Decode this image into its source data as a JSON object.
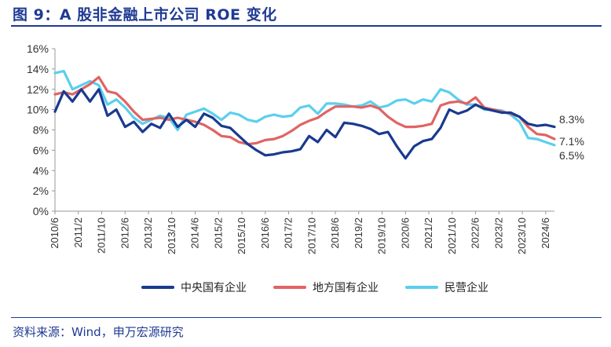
{
  "page": {
    "title": "图 9：A 股非金融上市公司 ROE 变化",
    "source": "资料来源：Wind，申万宏源研究"
  },
  "chart_data": {
    "type": "line",
    "title": "",
    "xlabel": "",
    "ylabel": "",
    "ylim": [
      0,
      16
    ],
    "yticks": [
      "0%",
      "2%",
      "4%",
      "6%",
      "8%",
      "10%",
      "12%",
      "14%",
      "16%"
    ],
    "x_tick_labels": [
      "2010/6",
      "2011/2",
      "2011/10",
      "2012/6",
      "2013/2",
      "2013/10",
      "2014/6",
      "2015/2",
      "2015/10",
      "2016/6",
      "2017/2",
      "2017/10",
      "2018/6",
      "2019/2",
      "2019/10",
      "2020/6",
      "2021/2",
      "2021/10",
      "2022/6",
      "2023/2",
      "2023/10",
      "2024/6"
    ],
    "x_start": "2010/6",
    "x_end": "2024/9",
    "grid": false,
    "legend_position": "bottom",
    "series": [
      {
        "name": "中央国有企业",
        "color": "#1a3a8f",
        "end_label": "8.3%",
        "points": [
          [
            "2010/6",
            9.8
          ],
          [
            "2010/9",
            11.8
          ],
          [
            "2010/12",
            10.8
          ],
          [
            "2011/3",
            12.0
          ],
          [
            "2011/6",
            10.8
          ],
          [
            "2011/9",
            12.0
          ],
          [
            "2011/12",
            9.4
          ],
          [
            "2012/3",
            10.0
          ],
          [
            "2012/6",
            8.3
          ],
          [
            "2012/9",
            8.8
          ],
          [
            "2012/12",
            7.8
          ],
          [
            "2013/3",
            8.6
          ],
          [
            "2013/6",
            8.2
          ],
          [
            "2013/9",
            9.6
          ],
          [
            "2013/12",
            8.3
          ],
          [
            "2014/3",
            9.0
          ],
          [
            "2014/6",
            8.3
          ],
          [
            "2014/9",
            9.6
          ],
          [
            "2014/12",
            9.2
          ],
          [
            "2015/3",
            8.4
          ],
          [
            "2015/6",
            8.2
          ],
          [
            "2015/9",
            7.4
          ],
          [
            "2015/12",
            6.6
          ],
          [
            "2016/3",
            6.0
          ],
          [
            "2016/6",
            5.5
          ],
          [
            "2016/9",
            5.6
          ],
          [
            "2016/12",
            5.8
          ],
          [
            "2017/3",
            5.9
          ],
          [
            "2017/6",
            6.1
          ],
          [
            "2017/9",
            7.4
          ],
          [
            "2017/12",
            6.8
          ],
          [
            "2018/3",
            8.0
          ],
          [
            "2018/6",
            7.3
          ],
          [
            "2018/9",
            8.7
          ],
          [
            "2018/12",
            8.6
          ],
          [
            "2019/3",
            8.4
          ],
          [
            "2019/6",
            8.1
          ],
          [
            "2019/9",
            7.6
          ],
          [
            "2019/12",
            7.8
          ],
          [
            "2020/3",
            6.4
          ],
          [
            "2020/6",
            5.2
          ],
          [
            "2020/9",
            6.4
          ],
          [
            "2020/12",
            6.9
          ],
          [
            "2021/3",
            7.1
          ],
          [
            "2021/6",
            8.2
          ],
          [
            "2021/9",
            10.0
          ],
          [
            "2021/12",
            9.6
          ],
          [
            "2022/3",
            9.9
          ],
          [
            "2022/6",
            10.5
          ],
          [
            "2022/9",
            10.1
          ],
          [
            "2022/12",
            9.9
          ],
          [
            "2023/3",
            9.7
          ],
          [
            "2023/6",
            9.7
          ],
          [
            "2023/9",
            9.3
          ],
          [
            "2023/12",
            8.6
          ],
          [
            "2024/3",
            8.4
          ],
          [
            "2024/6",
            8.5
          ],
          [
            "2024/9",
            8.3
          ]
        ]
      },
      {
        "name": "地方国有企业",
        "color": "#e06464",
        "end_label": "7.1%",
        "points": [
          [
            "2010/6",
            11.5
          ],
          [
            "2010/9",
            11.7
          ],
          [
            "2010/12",
            11.5
          ],
          [
            "2011/3",
            12.0
          ],
          [
            "2011/6",
            12.5
          ],
          [
            "2011/9",
            13.2
          ],
          [
            "2011/12",
            11.8
          ],
          [
            "2012/3",
            11.6
          ],
          [
            "2012/6",
            10.8
          ],
          [
            "2012/9",
            9.8
          ],
          [
            "2012/12",
            9.0
          ],
          [
            "2013/3",
            9.1
          ],
          [
            "2013/6",
            9.2
          ],
          [
            "2013/9",
            9.0
          ],
          [
            "2013/12",
            9.2
          ],
          [
            "2014/3",
            9.0
          ],
          [
            "2014/6",
            8.8
          ],
          [
            "2014/9",
            8.5
          ],
          [
            "2014/12",
            8.0
          ],
          [
            "2015/3",
            7.4
          ],
          [
            "2015/6",
            7.3
          ],
          [
            "2015/9",
            6.8
          ],
          [
            "2015/12",
            6.6
          ],
          [
            "2016/3",
            6.7
          ],
          [
            "2016/6",
            7.0
          ],
          [
            "2016/9",
            7.1
          ],
          [
            "2016/12",
            7.4
          ],
          [
            "2017/3",
            7.9
          ],
          [
            "2017/6",
            8.5
          ],
          [
            "2017/9",
            8.9
          ],
          [
            "2017/12",
            9.2
          ],
          [
            "2018/3",
            9.8
          ],
          [
            "2018/6",
            10.3
          ],
          [
            "2018/9",
            10.3
          ],
          [
            "2018/12",
            10.3
          ],
          [
            "2019/3",
            10.2
          ],
          [
            "2019/6",
            10.4
          ],
          [
            "2019/9",
            10.1
          ],
          [
            "2019/12",
            9.3
          ],
          [
            "2020/3",
            8.7
          ],
          [
            "2020/6",
            8.3
          ],
          [
            "2020/9",
            8.3
          ],
          [
            "2020/12",
            8.4
          ],
          [
            "2021/3",
            8.6
          ],
          [
            "2021/6",
            10.4
          ],
          [
            "2021/9",
            10.7
          ],
          [
            "2021/12",
            10.8
          ],
          [
            "2022/3",
            10.6
          ],
          [
            "2022/6",
            11.2
          ],
          [
            "2022/9",
            10.2
          ],
          [
            "2022/12",
            10.0
          ],
          [
            "2023/3",
            9.8
          ],
          [
            "2023/6",
            9.6
          ],
          [
            "2023/9",
            9.3
          ],
          [
            "2023/12",
            8.3
          ],
          [
            "2024/3",
            7.6
          ],
          [
            "2024/6",
            7.5
          ],
          [
            "2024/9",
            7.1
          ]
        ]
      },
      {
        "name": "民营企业",
        "color": "#5bcfee",
        "end_label": "6.5%",
        "points": [
          [
            "2010/6",
            13.6
          ],
          [
            "2010/9",
            13.8
          ],
          [
            "2010/12",
            12.0
          ],
          [
            "2011/3",
            12.4
          ],
          [
            "2011/6",
            12.8
          ],
          [
            "2011/9",
            12.4
          ],
          [
            "2011/12",
            10.5
          ],
          [
            "2012/3",
            11.0
          ],
          [
            "2012/6",
            10.2
          ],
          [
            "2012/9",
            9.2
          ],
          [
            "2012/12",
            8.6
          ],
          [
            "2013/3",
            9.0
          ],
          [
            "2013/6",
            9.4
          ],
          [
            "2013/9",
            9.2
          ],
          [
            "2013/12",
            8.0
          ],
          [
            "2014/3",
            9.5
          ],
          [
            "2014/6",
            9.8
          ],
          [
            "2014/9",
            10.1
          ],
          [
            "2014/12",
            9.6
          ],
          [
            "2015/3",
            9.0
          ],
          [
            "2015/6",
            9.7
          ],
          [
            "2015/9",
            9.5
          ],
          [
            "2015/12",
            9.0
          ],
          [
            "2016/3",
            8.8
          ],
          [
            "2016/6",
            9.3
          ],
          [
            "2016/9",
            9.5
          ],
          [
            "2016/12",
            9.3
          ],
          [
            "2017/3",
            9.4
          ],
          [
            "2017/6",
            10.2
          ],
          [
            "2017/9",
            10.4
          ],
          [
            "2017/12",
            9.6
          ],
          [
            "2018/3",
            10.6
          ],
          [
            "2018/6",
            10.6
          ],
          [
            "2018/9",
            10.5
          ],
          [
            "2018/12",
            10.3
          ],
          [
            "2019/3",
            10.4
          ],
          [
            "2019/6",
            10.8
          ],
          [
            "2019/9",
            10.2
          ],
          [
            "2019/12",
            10.4
          ],
          [
            "2020/3",
            10.9
          ],
          [
            "2020/6",
            11.0
          ],
          [
            "2020/9",
            10.6
          ],
          [
            "2020/12",
            11.0
          ],
          [
            "2021/3",
            10.8
          ],
          [
            "2021/6",
            12.0
          ],
          [
            "2021/9",
            11.7
          ],
          [
            "2021/12",
            11.0
          ],
          [
            "2022/3",
            10.5
          ],
          [
            "2022/6",
            10.5
          ],
          [
            "2022/9",
            10.0
          ],
          [
            "2022/12",
            10.0
          ],
          [
            "2023/3",
            9.9
          ],
          [
            "2023/6",
            9.5
          ],
          [
            "2023/9",
            8.8
          ],
          [
            "2023/12",
            7.2
          ],
          [
            "2024/3",
            7.1
          ],
          [
            "2024/6",
            6.8
          ],
          [
            "2024/9",
            6.5
          ]
        ]
      }
    ]
  }
}
